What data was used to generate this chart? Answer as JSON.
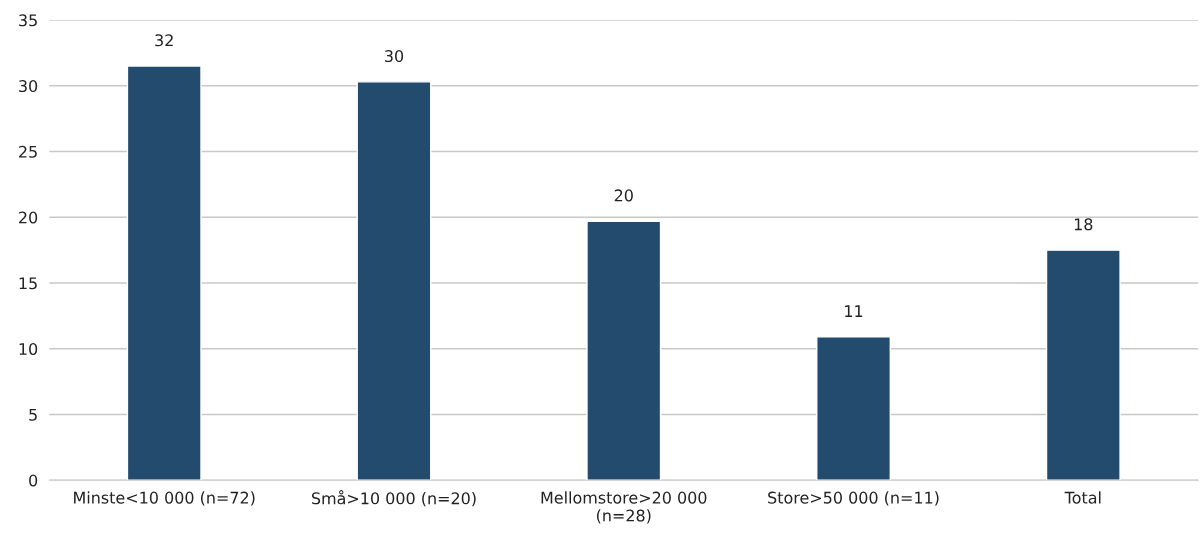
{
  "chart_data": {
    "type": "bar",
    "categories": [
      "Minste<10 000 (n=72)",
      "Små>10 000 (n=20)",
      "Mellomstore>20 000\n(n=28)",
      "Store>50 000 (n=11)",
      "Total"
    ],
    "values": [
      31.5,
      30.3,
      19.7,
      10.9,
      17.5
    ],
    "value_labels": [
      "32",
      "30",
      "20",
      "11",
      "18"
    ],
    "color": "#224b6d",
    "ylim": [
      0,
      35
    ],
    "yticks": [
      0,
      5,
      10,
      15,
      20,
      25,
      30,
      35
    ],
    "grid": "y"
  }
}
